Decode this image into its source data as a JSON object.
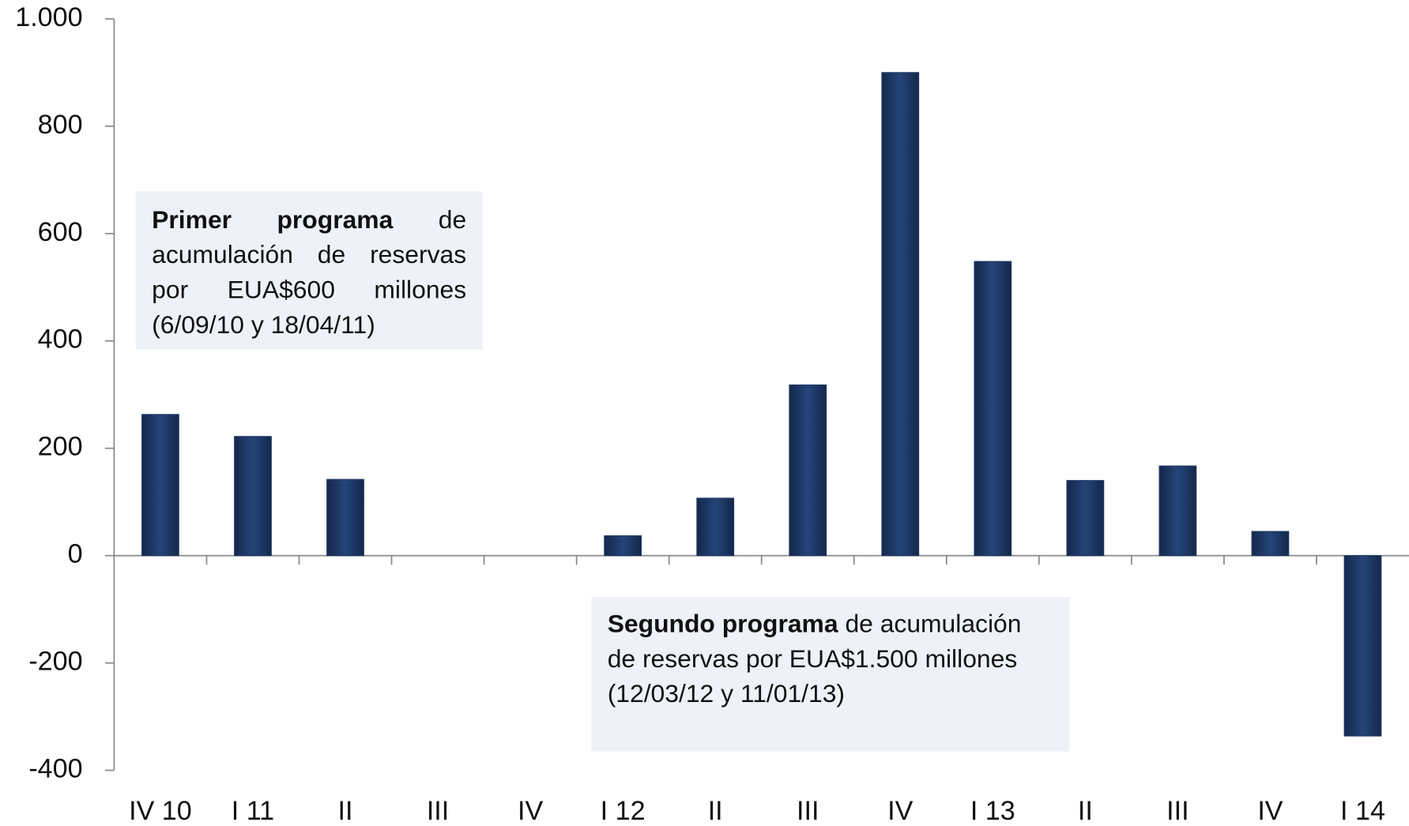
{
  "chart_data": {
    "type": "bar",
    "categories": [
      "IV 10",
      "I 11",
      "II",
      "III",
      "IV",
      "I 12",
      "II",
      "III",
      "IV",
      "I 13",
      "II",
      "III",
      "IV",
      "I 14"
    ],
    "values": [
      263,
      222,
      142,
      0,
      0,
      37,
      107,
      318,
      900,
      548,
      140,
      167,
      45,
      -336
    ],
    "color": "#1f3864",
    "ylim": [
      -400,
      1000
    ],
    "yticks": [
      -400,
      -200,
      0,
      200,
      400,
      600,
      800,
      {
        "value": 1000,
        "label": "1.000"
      }
    ],
    "grid": false,
    "annotations": [
      {
        "bold": "Primer programa",
        "text": " de acumulación de reservas por EUA$600 millones (6/09/10 y 18/04/11)"
      },
      {
        "bold": "Segundo programa",
        "text": " de acumulación de reservas por EUA$1.500 millones (12/03/12 y 11/01/13)"
      }
    ]
  }
}
